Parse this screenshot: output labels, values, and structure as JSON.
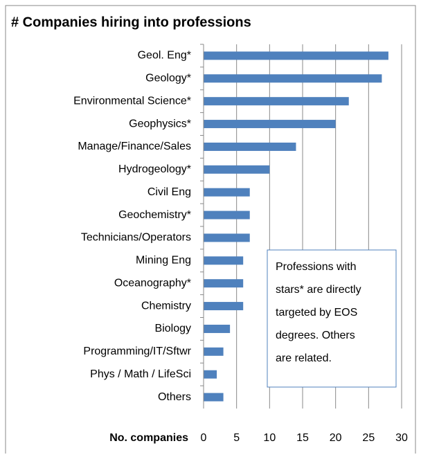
{
  "chart_data": {
    "type": "bar",
    "orientation": "horizontal",
    "title": "# Companies hiring into professions",
    "xlabel": "No. companies",
    "categories": [
      "Geol. Eng*",
      "Geology*",
      "Environmental Science*",
      "Geophysics*",
      "Manage/Finance/Sales",
      "Hydrogeology*",
      "Civil Eng",
      "Geochemistry*",
      "Technicians/Operators",
      "Mining Eng",
      "Oceanography*",
      "Chemistry",
      "Biology",
      "Programming/IT/Sftwr",
      "Phys / Math / LifeSci",
      "Others"
    ],
    "values": [
      28,
      27,
      22,
      20,
      14,
      10,
      7,
      7,
      7,
      6,
      6,
      6,
      4,
      3,
      2,
      3
    ],
    "color": "#4f81bd",
    "xlim": [
      0,
      30
    ],
    "xticks": [
      0,
      5,
      10,
      15,
      20,
      25,
      30
    ],
    "grid": true,
    "annotation": [
      "Professions with",
      "stars* are directly",
      "targeted by EOS",
      "degrees.  Others",
      "are related."
    ]
  }
}
